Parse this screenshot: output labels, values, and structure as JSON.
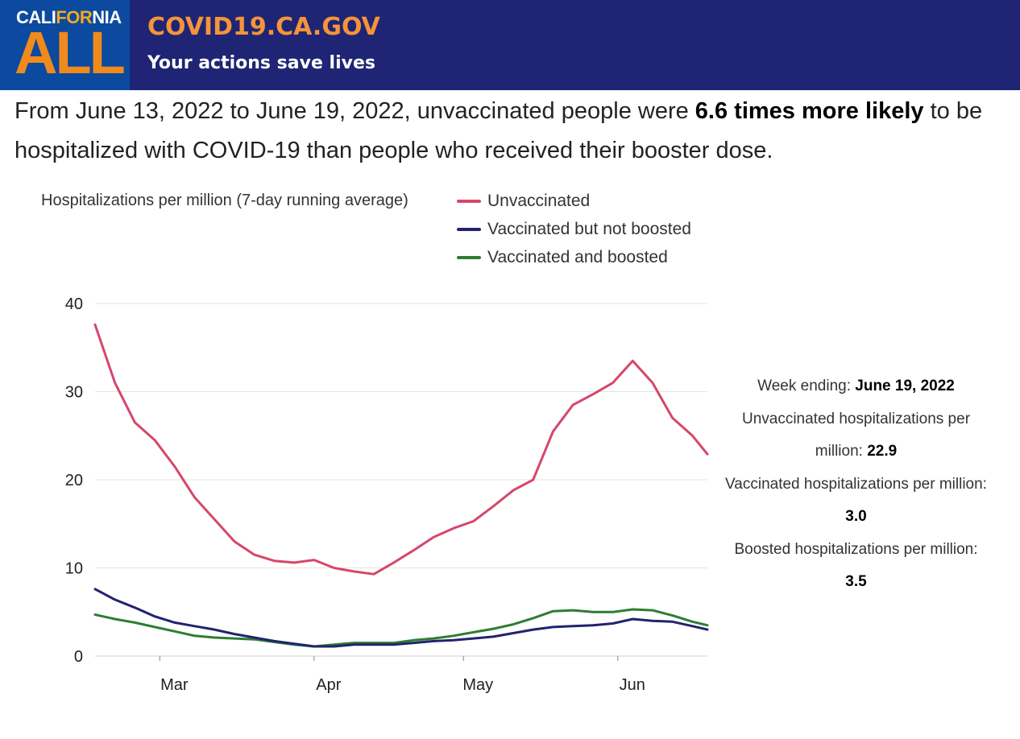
{
  "header": {
    "logo_top_a": "CALI",
    "logo_top_b": "FOR",
    "logo_top_c": "NIA",
    "logo_main": "ALL",
    "site_name": "COVID19.CA.GOV",
    "tagline": "Your actions save lives"
  },
  "summary": {
    "text_before": "From June 13, 2022 to June 19, 2022, unvaccinated people were ",
    "emphasis": "6.6 times more likely",
    "text_after": " to be hospitalized with COVID-19 than people who received their booster dose."
  },
  "side_panel": {
    "week_label": "Week ending: ",
    "week_value": "June 19, 2022",
    "unvax_label": "Unvaccinated hospitalizations per million: ",
    "unvax_value": "22.9",
    "vax_label": "Vaccinated hospitalizations per million: ",
    "vax_value": "3.0",
    "boost_label": "Boosted hospitalizations per million: ",
    "boost_value": "3.5"
  },
  "chart_data": {
    "type": "line",
    "title": "Hospitalizations per million (7-day running average)",
    "xlabel": "",
    "ylabel": "",
    "ylim": [
      0,
      40
    ],
    "yticks": [
      0,
      10,
      20,
      30,
      40
    ],
    "xlim": [
      "2022-02-16",
      "2022-06-19"
    ],
    "xticks": [
      {
        "date": "2022-03-01",
        "label": "Mar"
      },
      {
        "date": "2022-04-01",
        "label": "Apr"
      },
      {
        "date": "2022-05-01",
        "label": "May"
      },
      {
        "date": "2022-06-01",
        "label": "Jun"
      }
    ],
    "grid": true,
    "legend_position": "top",
    "x_dates": [
      "2022-02-16",
      "2022-02-20",
      "2022-02-24",
      "2022-02-28",
      "2022-03-04",
      "2022-03-08",
      "2022-03-12",
      "2022-03-16",
      "2022-03-20",
      "2022-03-24",
      "2022-03-28",
      "2022-04-01",
      "2022-04-05",
      "2022-04-09",
      "2022-04-13",
      "2022-04-17",
      "2022-04-21",
      "2022-04-25",
      "2022-04-29",
      "2022-05-03",
      "2022-05-07",
      "2022-05-11",
      "2022-05-15",
      "2022-05-19",
      "2022-05-23",
      "2022-05-27",
      "2022-05-31",
      "2022-06-04",
      "2022-06-08",
      "2022-06-12",
      "2022-06-16",
      "2022-06-19"
    ],
    "series": [
      {
        "name": "Unvaccinated",
        "color": "#d6476a",
        "values": [
          37.6,
          31.0,
          26.5,
          24.5,
          21.5,
          18.0,
          15.5,
          13.0,
          11.5,
          10.8,
          10.6,
          10.9,
          10.0,
          9.6,
          9.3,
          10.6,
          12.0,
          13.5,
          14.5,
          15.3,
          17.0,
          18.8,
          20.0,
          25.5,
          28.5,
          29.7,
          31.0,
          33.5,
          31.0,
          27.0,
          25.0,
          22.9
        ]
      },
      {
        "name": "Vaccinated but not boosted",
        "color": "#23226e",
        "values": [
          7.6,
          6.4,
          5.5,
          4.5,
          3.8,
          3.4,
          3.0,
          2.5,
          2.1,
          1.7,
          1.4,
          1.1,
          1.1,
          1.3,
          1.3,
          1.3,
          1.5,
          1.7,
          1.8,
          2.0,
          2.2,
          2.6,
          3.0,
          3.3,
          3.4,
          3.5,
          3.7,
          4.2,
          4.0,
          3.9,
          3.4,
          3.0
        ]
      },
      {
        "name": "Vaccinated and boosted",
        "color": "#2e7d32",
        "values": [
          4.7,
          4.2,
          3.8,
          3.3,
          2.8,
          2.3,
          2.1,
          2.0,
          1.9,
          1.6,
          1.3,
          1.1,
          1.3,
          1.5,
          1.5,
          1.5,
          1.8,
          2.0,
          2.3,
          2.7,
          3.1,
          3.6,
          4.3,
          5.1,
          5.2,
          5.0,
          5.0,
          5.3,
          5.2,
          4.6,
          3.9,
          3.5
        ]
      }
    ]
  }
}
